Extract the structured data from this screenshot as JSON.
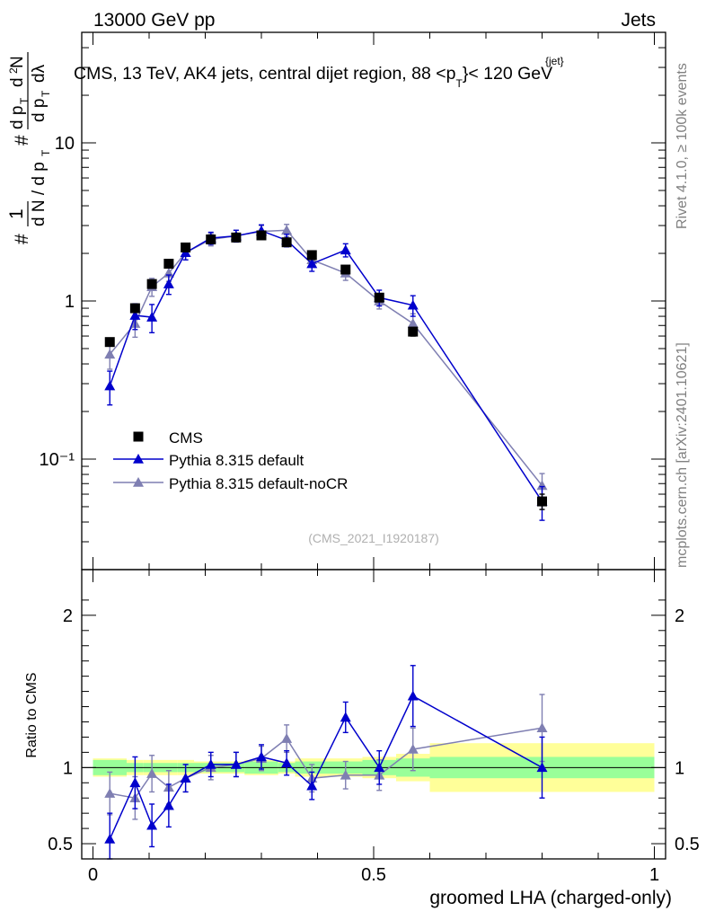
{
  "chart_data": {
    "type": "scatter",
    "header_left": "13000 GeV pp",
    "header_right": "Jets",
    "title": "CMS, 13 TeV, AK4 jets, central dijet region, 88 <p",
    "title_sup": "{jet}",
    "title_sub": "T",
    "title_end": "}< 120 GeV",
    "ylabel_main": "# 1/dN/dpT # d²N/dpT dλ",
    "ylabel_ratio": "Ratio to CMS",
    "xlabel": "groomed LHA (charged-only)",
    "analysis_id": "(CMS_2021_I1920187)",
    "side_text_1": "Rivet 4.1.0, ≥ 100k events",
    "side_text_2": "mcplots.cern.ch [arXiv:2401.10621]",
    "main_ylim": [
      0.02,
      50
    ],
    "main_yscale": "log",
    "main_yticks": [
      "10⁻¹",
      "1",
      "10"
    ],
    "ratio_ylim": [
      0.4,
      2.3
    ],
    "ratio_yticks": [
      "0.5",
      "1",
      "2"
    ],
    "xlim": [
      -0.02,
      1.02
    ],
    "xticks": [
      "0",
      "0.5",
      "1"
    ],
    "bin_edges": [
      0.0,
      0.06,
      0.09,
      0.12,
      0.15,
      0.18,
      0.24,
      0.27,
      0.33,
      0.36,
      0.42,
      0.48,
      0.54,
      0.6,
      1.0
    ],
    "band_inner": [
      0.05,
      0.03,
      0.03,
      0.03,
      0.03,
      0.03,
      0.03,
      0.04,
      0.03,
      0.04,
      0.04,
      0.05,
      0.06,
      0.07
    ],
    "band_outer": [
      0.06,
      0.05,
      0.05,
      0.05,
      0.05,
      0.04,
      0.04,
      0.05,
      0.04,
      0.06,
      0.06,
      0.07,
      0.09,
      0.16
    ],
    "x": [
      0.03,
      0.075,
      0.105,
      0.135,
      0.165,
      0.21,
      0.255,
      0.3,
      0.345,
      0.39,
      0.45,
      0.51,
      0.57,
      0.8
    ],
    "series": [
      {
        "name": "CMS",
        "color": "#000000",
        "marker": "square",
        "values": [
          0.55,
          0.9,
          1.28,
          1.72,
          2.18,
          2.45,
          2.52,
          2.6,
          2.35,
          1.95,
          1.58,
          1.05,
          0.64,
          0.054
        ],
        "err": [
          0.03,
          0.05,
          0.06,
          0.08,
          0.1,
          0.1,
          0.1,
          0.11,
          0.1,
          0.09,
          0.08,
          0.06,
          0.04,
          0.006
        ]
      },
      {
        "name": "Pythia 8.315 default",
        "color": "#0000cc",
        "marker": "triangle",
        "values": [
          0.29,
          0.81,
          0.79,
          1.28,
          2.02,
          2.5,
          2.58,
          2.78,
          2.42,
          1.72,
          2.1,
          1.05,
          0.94,
          0.054
        ],
        "err": [
          0.07,
          0.15,
          0.16,
          0.18,
          0.2,
          0.22,
          0.22,
          0.25,
          0.22,
          0.18,
          0.2,
          0.12,
          0.14,
          0.013
        ]
      },
      {
        "name": "Pythia 8.315 default-noCR",
        "color": "#7f7fb2",
        "marker": "triangle",
        "values": [
          0.46,
          0.72,
          1.23,
          1.5,
          2.02,
          2.45,
          2.58,
          2.75,
          2.8,
          1.82,
          1.5,
          1.0,
          0.72,
          0.068
        ],
        "err": [
          0.09,
          0.13,
          0.16,
          0.17,
          0.2,
          0.22,
          0.22,
          0.25,
          0.25,
          0.18,
          0.15,
          0.11,
          0.11,
          0.013
        ]
      }
    ],
    "ratio_series": [
      {
        "name": "Pythia 8.315 default",
        "values": [
          0.53,
          0.9,
          0.62,
          0.75,
          0.93,
          1.02,
          1.02,
          1.07,
          1.03,
          0.88,
          1.33,
          1.0,
          1.47,
          1.0
        ],
        "err": [
          0.17,
          0.17,
          0.14,
          0.14,
          0.09,
          0.08,
          0.08,
          0.08,
          0.08,
          0.09,
          0.1,
          0.11,
          0.2,
          0.2
        ]
      },
      {
        "name": "Pythia 8.315 default-noCR",
        "values": [
          0.83,
          0.8,
          0.96,
          0.87,
          0.93,
          1.0,
          1.02,
          1.06,
          1.19,
          0.93,
          0.95,
          0.95,
          1.12,
          1.26
        ],
        "err": [
          0.14,
          0.14,
          0.12,
          0.11,
          0.09,
          0.08,
          0.08,
          0.08,
          0.09,
          0.09,
          0.09,
          0.1,
          0.14,
          0.22
        ]
      }
    ]
  }
}
